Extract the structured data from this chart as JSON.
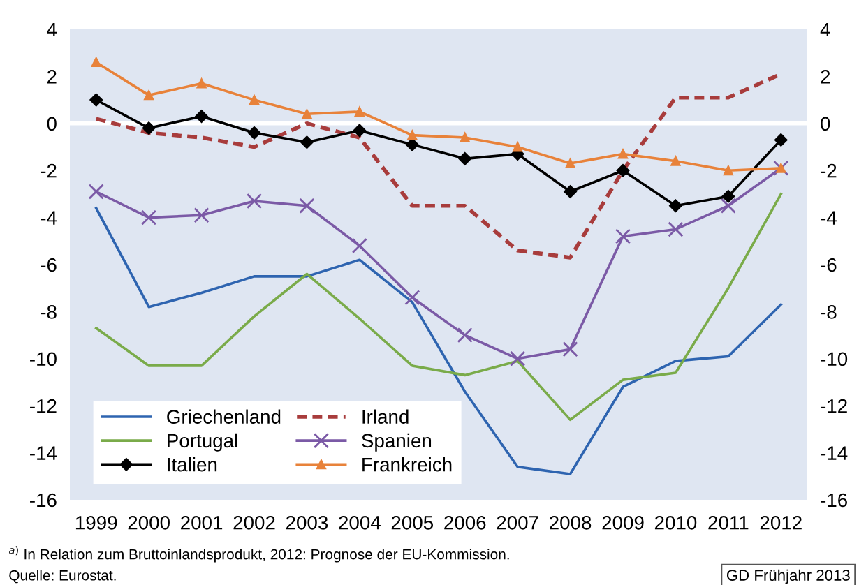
{
  "chart_data": {
    "type": "line",
    "categories": [
      "1999",
      "2000",
      "2001",
      "2002",
      "2003",
      "2004",
      "2005",
      "2006",
      "2007",
      "2008",
      "2009",
      "2010",
      "2011",
      "2012"
    ],
    "series": [
      {
        "name": "Griechenland",
        "color": "#2e64b0",
        "marker": "none",
        "line_style": "solid",
        "values": [
          -3.6,
          -7.8,
          -7.2,
          -6.5,
          -6.5,
          -5.8,
          -7.6,
          -11.4,
          -14.6,
          -14.9,
          -11.2,
          -10.1,
          -9.9,
          -7.7
        ]
      },
      {
        "name": "Irland",
        "color": "#a83c3c",
        "marker": "none",
        "line_style": "dashed",
        "values": [
          0.2,
          -0.4,
          -0.6,
          -1.0,
          0.0,
          -0.6,
          -3.5,
          -3.5,
          -5.4,
          -5.7,
          -2.0,
          1.1,
          1.1,
          2.1
        ]
      },
      {
        "name": "Portugal",
        "color": "#7aab4a",
        "marker": "none",
        "line_style": "solid",
        "values": [
          -8.7,
          -10.3,
          -10.3,
          -8.2,
          -6.4,
          -8.3,
          -10.3,
          -10.7,
          -10.1,
          -12.6,
          -10.9,
          -10.6,
          -7.0,
          -3.0
        ]
      },
      {
        "name": "Spanien",
        "color": "#7b5aa6",
        "marker": "cross",
        "line_style": "solid",
        "values": [
          -2.9,
          -4.0,
          -3.9,
          -3.3,
          -3.5,
          -5.2,
          -7.4,
          -9.0,
          -10.0,
          -9.6,
          -4.8,
          -4.5,
          -3.5,
          -1.9
        ]
      },
      {
        "name": "Italien",
        "color": "#000000",
        "marker": "diamond",
        "line_style": "solid",
        "values": [
          1.0,
          -0.2,
          0.3,
          -0.4,
          -0.8,
          -0.3,
          -0.9,
          -1.5,
          -1.3,
          -2.9,
          -2.0,
          -3.5,
          -3.1,
          -0.7
        ]
      },
      {
        "name": "Frankreich",
        "color": "#e8823a",
        "marker": "triangle",
        "line_style": "solid",
        "values": [
          2.6,
          1.2,
          1.7,
          1.0,
          0.4,
          0.5,
          -0.5,
          -0.6,
          -1.0,
          -1.7,
          -1.3,
          -1.6,
          -2.0,
          -1.9
        ]
      }
    ],
    "ylim": [
      -16,
      4
    ],
    "yticks": [
      -16,
      -14,
      -12,
      -10,
      -8,
      -6,
      -4,
      -2,
      0,
      2,
      4
    ],
    "y2lim": [
      -16,
      4
    ],
    "y2ticks": [
      -16,
      -14,
      -12,
      -10,
      -8,
      -6,
      -4,
      -2,
      0,
      2,
      4
    ],
    "ref_lines": [
      {
        "axis": "y",
        "value": 0,
        "color": "#ffffff"
      }
    ],
    "grid": false,
    "legend": "bottom left",
    "annotations": [
      "$^{a)}$ In Relation zum Bruttoinlandsprodukt, 2012: Prognose der EU-Kommission.",
      "Quelle: Eurostat.",
      "GD Frühjahr 2013"
    ]
  }
}
